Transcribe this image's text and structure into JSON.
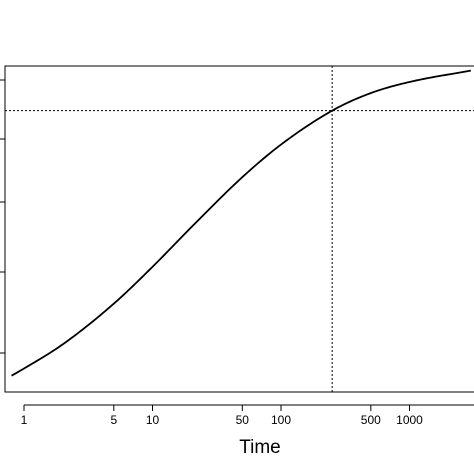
{
  "chart_data": {
    "type": "line",
    "title": "",
    "xlabel": "Time",
    "ylabel": "",
    "x_scale": "log",
    "x_ticks": [
      1,
      5,
      10,
      50,
      100,
      500,
      1000
    ],
    "x_tick_labels": [
      "1",
      "5",
      "10",
      "50",
      "100",
      "500",
      "1000"
    ],
    "xlim": [
      0.8,
      3000
    ],
    "grid": false,
    "series": [
      {
        "values_x": [
          0.8,
          1,
          2,
          5,
          10,
          20,
          50,
          100,
          250,
          500,
          1000,
          3000
        ],
        "values_y": [
          0.05,
          0.072,
          0.146,
          0.271,
          0.384,
          0.505,
          0.659,
          0.759,
          0.863,
          0.917,
          0.951,
          0.986
        ]
      }
    ],
    "reference_lines": {
      "vertical_x": 250,
      "horizontal_y": 0.863,
      "style": "dotted"
    },
    "colors": {
      "line": "#000000",
      "frame": "#000000",
      "reference": "#000000"
    }
  }
}
